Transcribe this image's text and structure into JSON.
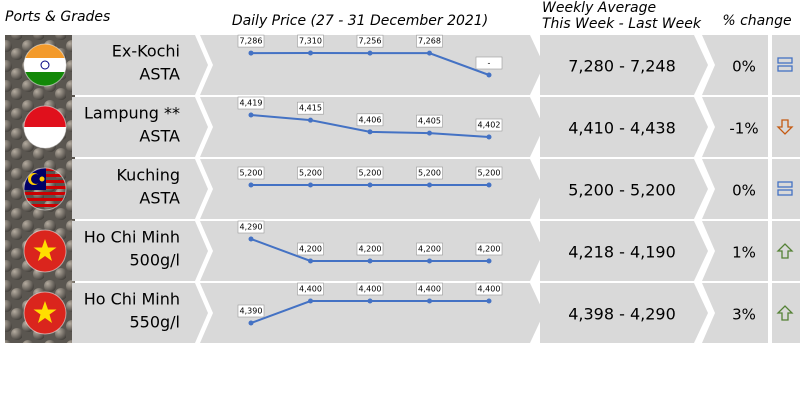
{
  "header": {
    "ports": "Ports & Grades",
    "daily": "Daily Price (27 - 31 December 2021)",
    "weekly_line1": "Weekly Average",
    "weekly_line2": "This Week - Last Week",
    "change": "% change"
  },
  "rows": [
    {
      "name": "Ex-Kochi",
      "grade": "ASTA",
      "flag": "india",
      "values": [
        7286,
        7310,
        7256,
        7268,
        0
      ],
      "value_labels": [
        "7,286",
        "7,310",
        "7,256",
        "7,268",
        "-"
      ],
      "weekly": "7,280 - 7,248",
      "change": "0%",
      "icon": "equal"
    },
    {
      "name": "Lampung **",
      "grade": "ASTA",
      "flag": "indonesia",
      "values": [
        4419,
        4415,
        4406,
        4405,
        4402
      ],
      "value_labels": [
        "4,419",
        "4,415",
        "4,406",
        "4,405",
        "4,402"
      ],
      "weekly": "4,410 - 4,438",
      "change": "-1%",
      "icon": "down"
    },
    {
      "name": "Kuching",
      "grade": "ASTA",
      "flag": "malaysia",
      "values": [
        5200,
        5200,
        5200,
        5200,
        5200
      ],
      "value_labels": [
        "5,200",
        "5,200",
        "5,200",
        "5,200",
        "5,200"
      ],
      "weekly": "5,200 - 5,200",
      "change": "0%",
      "icon": "equal"
    },
    {
      "name": "Ho Chi Minh",
      "grade": "500g/l",
      "flag": "vietnam",
      "values": [
        4290,
        4200,
        4200,
        4200,
        4200
      ],
      "value_labels": [
        "4,290",
        "4,200",
        "4,200",
        "4,200",
        "4,200"
      ],
      "weekly": "4,218 - 4,190",
      "change": "1%",
      "icon": "up"
    },
    {
      "name": "Ho Chi Minh",
      "grade": "550g/l",
      "flag": "vietnam",
      "values": [
        4390,
        4400,
        4400,
        4400,
        4400
      ],
      "value_labels": [
        "4,390",
        "4,400",
        "4,400",
        "4,400",
        "4,400"
      ],
      "weekly": "4,398 - 4,290",
      "change": "3%",
      "icon": "up"
    }
  ],
  "line_color": "#4472c4"
}
